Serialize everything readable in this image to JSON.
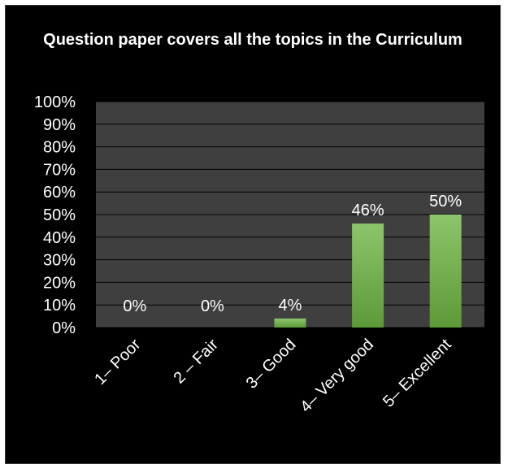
{
  "chart_data": {
    "type": "bar",
    "title": "Question paper covers all the topics in the Curriculum",
    "categories": [
      "1– Poor",
      "2 – Fair",
      "3– Good",
      "4– Very good",
      "5– Excellent"
    ],
    "values": [
      0,
      0,
      4,
      46,
      50
    ],
    "data_labels": [
      "0%",
      "0%",
      "4%",
      "46%",
      "50%"
    ],
    "ylim": [
      0,
      100
    ],
    "yticks": [
      "0%",
      "10%",
      "20%",
      "30%",
      "40%",
      "50%",
      "60%",
      "70%",
      "80%",
      "90%",
      "100%"
    ],
    "grid": true,
    "legend": "none",
    "colors": {
      "background": "#000000",
      "plot_area": "#3f3f3f",
      "gridline": "#000000",
      "bar_top": "#8cc56a",
      "bar_bottom": "#5c9a38",
      "text": "#ffffff"
    }
  }
}
